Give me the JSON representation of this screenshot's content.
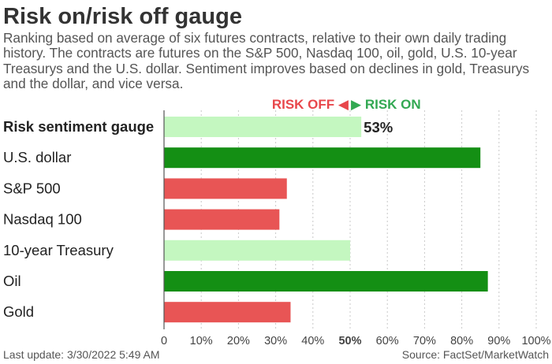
{
  "title": "Risk on/risk off gauge",
  "subtitle": "Ranking based on average of six futures contracts, relative to their own daily trading history. The contracts are futures on the S&P 500, Nasdaq 100, oil, gold, U.S. 10-year Treasurys and the U.S. dollar. Sentiment improves based on declines in gold, Treasurys and the dollar, and vice versa.",
  "legend": {
    "risk_off": "RISK OFF",
    "risk_on": "RISK ON",
    "risk_off_color": "#e8474b",
    "risk_on_color": "#32a852"
  },
  "footer": {
    "last_update": "Last update: 3/30/2022 5:49 AM",
    "source": "Source: FactSet/MarketWatch"
  },
  "colors": {
    "gauge_light_green": "#c4f7c0",
    "dark_green": "#148f14",
    "red": "#e85555",
    "light_green": "#c4f7c0",
    "grid": "#c8c8c8"
  },
  "chart_data": {
    "type": "bar",
    "orientation": "horizontal",
    "categories": [
      "Risk sentiment gauge",
      "U.S. dollar",
      "S&P 500",
      "Nasdaq 100",
      "10-year Treasury",
      "Oil",
      "Gold"
    ],
    "values": [
      53,
      85,
      33,
      31,
      50,
      87,
      34
    ],
    "bar_colors": [
      "#c4f7c0",
      "#148f14",
      "#e85555",
      "#e85555",
      "#c4f7c0",
      "#148f14",
      "#e85555"
    ],
    "data_labels": [
      "53%",
      "",
      "",
      "",
      "",
      "",
      ""
    ],
    "highlight_first_category": true,
    "x_ticks": [
      "0",
      "10%",
      "20%",
      "30%",
      "40%",
      "50%",
      "60%",
      "70%",
      "80%",
      "90%",
      "100%"
    ],
    "bold_tick": "50%",
    "xlim": [
      0,
      100
    ],
    "grid": "vertical dotted",
    "xlabel": "",
    "ylabel": ""
  }
}
